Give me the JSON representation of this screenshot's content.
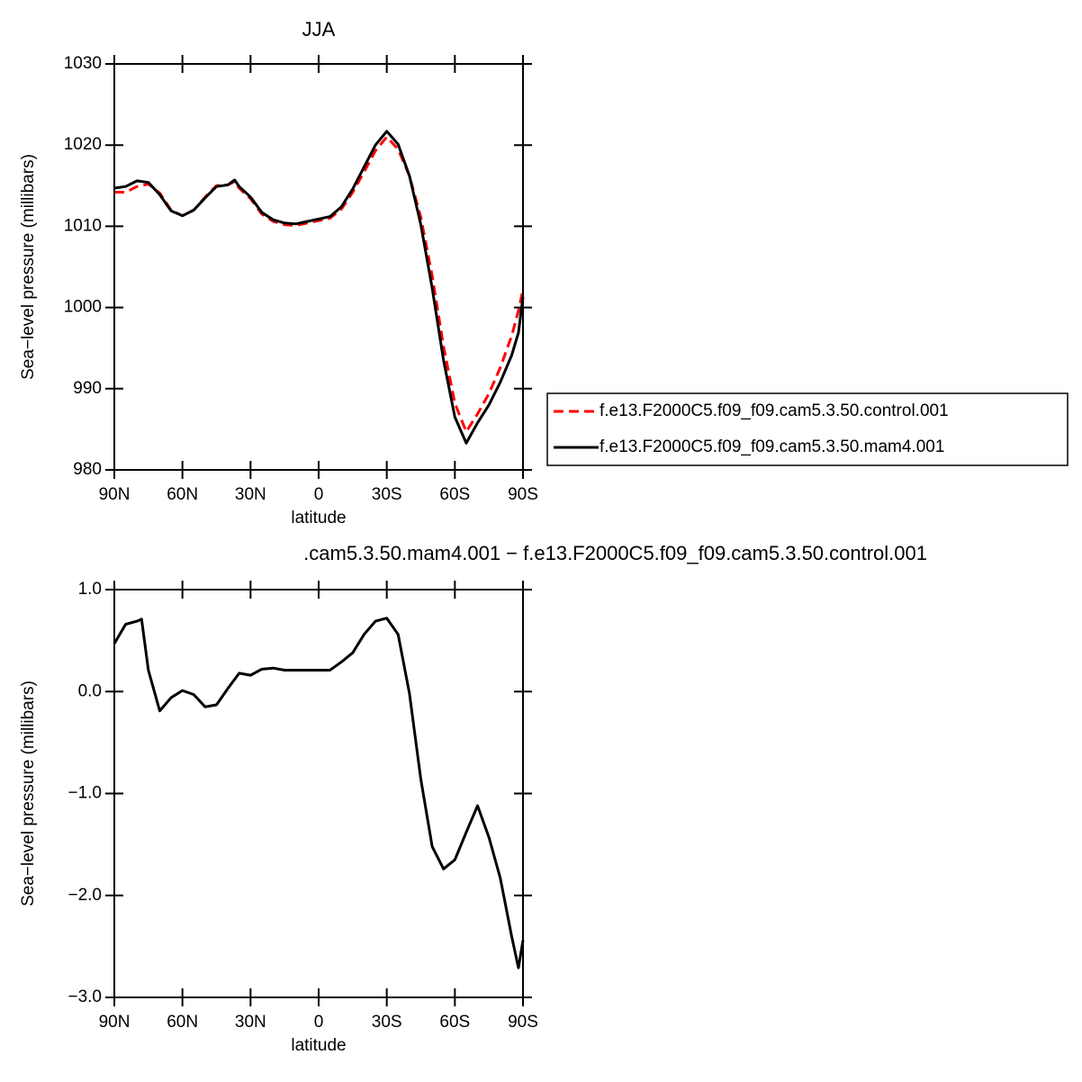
{
  "chart_data": [
    {
      "type": "line",
      "title": "JJA",
      "xlabel": "latitude",
      "ylabel": "Sea−level pressure (millibars)",
      "x": [
        90,
        85,
        80,
        75,
        70,
        65,
        60,
        55,
        50,
        45,
        40,
        37,
        35,
        30,
        25,
        20,
        15,
        10,
        5,
        0,
        -5,
        -10,
        -15,
        -20,
        -25,
        -30,
        -35,
        -40,
        -45,
        -50,
        -55,
        -60,
        -65,
        -70,
        -75,
        -80,
        -85,
        -88,
        -90
      ],
      "series": [
        {
          "name": "f.e13.F2000C5.f09_f09.cam5.3.50.control.001",
          "color": "#ff0000",
          "dashed": true,
          "values": [
            1014.2,
            1014.2,
            1014.9,
            1015.2,
            1014.1,
            1012.0,
            1011.3,
            1012.0,
            1013.6,
            1015.0,
            1015.1,
            1015.5,
            1014.7,
            1013.4,
            1011.5,
            1010.6,
            1010.2,
            1010.1,
            1010.4,
            1010.7,
            1011.0,
            1012.1,
            1014.2,
            1016.7,
            1019.3,
            1021.0,
            1019.5,
            1016.2,
            1011.1,
            1003.9,
            995.2,
            988.2,
            984.7,
            986.9,
            989.4,
            992.6,
            996.5,
            999.6,
            1002.2
          ]
        },
        {
          "name": "f.e13.F2000C5.f09_f09.cam5.3.50.mam4.001",
          "color": "#000000",
          "dashed": false,
          "values": [
            1014.7,
            1014.9,
            1015.6,
            1015.4,
            1013.9,
            1011.9,
            1011.3,
            1012.0,
            1013.5,
            1014.9,
            1015.1,
            1015.7,
            1014.9,
            1013.6,
            1011.7,
            1010.8,
            1010.4,
            1010.3,
            1010.6,
            1010.9,
            1011.2,
            1012.4,
            1014.6,
            1017.3,
            1020.0,
            1021.7,
            1020.1,
            1016.2,
            1010.2,
            1002.4,
            993.5,
            986.5,
            983.3,
            985.8,
            988.0,
            990.8,
            994.1,
            996.9,
            1001.3
          ]
        }
      ],
      "xlim": [
        90,
        -90
      ],
      "xticks": [
        {
          "value": 90,
          "label": "90N"
        },
        {
          "value": 60,
          "label": "60N"
        },
        {
          "value": 30,
          "label": "30N"
        },
        0,
        {
          "value": -30,
          "label": "30S"
        },
        {
          "value": -60,
          "label": "60S"
        },
        {
          "value": -90,
          "label": "90S"
        }
      ],
      "ylim": [
        980,
        1030
      ],
      "yticks": [
        980,
        990,
        1000,
        1010,
        1020,
        1030
      ],
      "legend": "right"
    },
    {
      "type": "line",
      "title": ".cam5.3.50.mam4.001 − f.e13.F2000C5.f09_f09.cam5.3.50.control.001",
      "xlabel": "latitude",
      "ylabel": "Sea−level pressure (millibars)",
      "x": [
        90,
        85,
        80,
        78,
        75,
        70,
        65,
        60,
        55,
        50,
        45,
        40,
        37,
        35,
        30,
        25,
        20,
        15,
        10,
        5,
        0,
        -5,
        -10,
        -15,
        -20,
        -25,
        -30,
        -35,
        -40,
        -45,
        -50,
        -55,
        -60,
        -65,
        -70,
        -75,
        -80,
        -85,
        -88,
        -90
      ],
      "values": [
        0.47,
        0.66,
        0.69,
        0.71,
        0.21,
        -0.19,
        -0.06,
        0.01,
        -0.03,
        -0.15,
        -0.13,
        0.03,
        0.12,
        0.18,
        0.16,
        0.22,
        0.23,
        0.21,
        0.21,
        0.21,
        0.21,
        0.21,
        0.29,
        0.38,
        0.56,
        0.69,
        0.72,
        0.56,
        -0.02,
        -0.86,
        -1.52,
        -1.74,
        -1.65,
        -1.38,
        -1.12,
        -1.43,
        -1.83,
        -2.4,
        -2.71,
        -2.44
      ],
      "color": "#000000",
      "xlim": [
        90,
        -90
      ],
      "xticks": [
        {
          "value": 90,
          "label": "90N"
        },
        {
          "value": 60,
          "label": "60N"
        },
        {
          "value": 30,
          "label": "30N"
        },
        0,
        {
          "value": -30,
          "label": "30S"
        },
        {
          "value": -60,
          "label": "60S"
        },
        {
          "value": -90,
          "label": "90S"
        }
      ],
      "ylim": [
        -3,
        1
      ],
      "yticks": [
        {
          "value": 1,
          "label": "1.0"
        },
        {
          "value": 0,
          "label": "0.0"
        },
        {
          "value": -1,
          "label": "−1.0"
        },
        {
          "value": -2,
          "label": "−2.0"
        },
        {
          "value": -3,
          "label": "−3.0"
        }
      ]
    }
  ]
}
